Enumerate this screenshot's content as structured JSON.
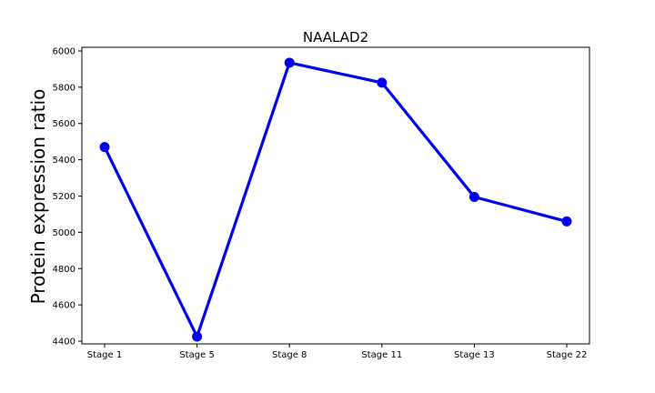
{
  "chart_data": {
    "type": "line",
    "title": "NAALAD2",
    "xlabel": "",
    "ylabel": "Protein expression ratio",
    "categories": [
      "Stage 1",
      "Stage 5",
      "Stage 8",
      "Stage 11",
      "Stage 13",
      "Stage 22"
    ],
    "series": [
      {
        "values": [
          5470,
          4425,
          5935,
          5825,
          5195,
          5060
        ]
      }
    ],
    "ylim": [
      4385,
      6020
    ],
    "yticks": [
      4400,
      4600,
      4800,
      5000,
      5200,
      5400,
      5600,
      5800,
      6000
    ],
    "grid": false,
    "color": "#0000ee"
  }
}
